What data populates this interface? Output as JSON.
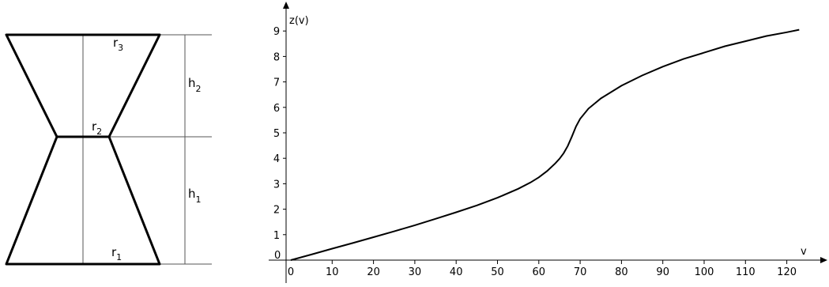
{
  "shape": {
    "labels": {
      "r1": {
        "main": "r",
        "sub": "1"
      },
      "r2": {
        "main": "r",
        "sub": "2"
      },
      "r3": {
        "main": "r",
        "sub": "3"
      },
      "h1": {
        "main": "h",
        "sub": "1"
      },
      "h2": {
        "main": "h",
        "sub": "2"
      }
    }
  },
  "chart_data": {
    "type": "line",
    "title": "",
    "xlabel": "v",
    "ylabel": "z(v)",
    "xlim": [
      -2,
      125
    ],
    "ylim": [
      -1,
      10
    ],
    "x_ticks": [
      "0",
      "10",
      "20",
      "30",
      "40",
      "50",
      "60",
      "70",
      "80",
      "90",
      "100",
      "110",
      "120"
    ],
    "y_ticks": [
      "1",
      "2",
      "3",
      "4",
      "5",
      "6",
      "7",
      "8",
      "9"
    ],
    "origin_label": "0",
    "grid": false,
    "series": [
      {
        "name": "",
        "points": [
          [
            0,
            0
          ],
          [
            5,
            0.22
          ],
          [
            10,
            0.45
          ],
          [
            15,
            0.67
          ],
          [
            20,
            0.9
          ],
          [
            25,
            1.13
          ],
          [
            30,
            1.37
          ],
          [
            35,
            1.62
          ],
          [
            40,
            1.88
          ],
          [
            45,
            2.15
          ],
          [
            50,
            2.45
          ],
          [
            55,
            2.8
          ],
          [
            58,
            3.05
          ],
          [
            60,
            3.25
          ],
          [
            62,
            3.5
          ],
          [
            64,
            3.8
          ],
          [
            65,
            3.98
          ],
          [
            66,
            4.2
          ],
          [
            67,
            4.48
          ],
          [
            68,
            4.85
          ],
          [
            69,
            5.25
          ],
          [
            70,
            5.55
          ],
          [
            72,
            5.95
          ],
          [
            75,
            6.35
          ],
          [
            80,
            6.85
          ],
          [
            85,
            7.25
          ],
          [
            90,
            7.6
          ],
          [
            95,
            7.9
          ],
          [
            100,
            8.15
          ],
          [
            105,
            8.4
          ],
          [
            110,
            8.6
          ],
          [
            115,
            8.8
          ],
          [
            120,
            8.95
          ],
          [
            123,
            9.05
          ]
        ]
      }
    ]
  }
}
